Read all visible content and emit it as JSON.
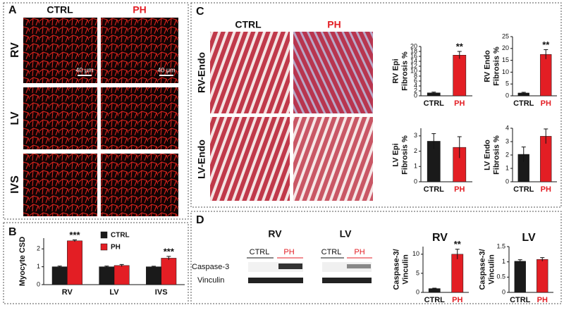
{
  "panels": {
    "A": {
      "letter": "A",
      "columns": [
        "CTRL",
        "PH"
      ],
      "rows": [
        "RV",
        "LV",
        "IVS"
      ],
      "scale_bar": "40 μm"
    },
    "B": {
      "letter": "B"
    },
    "C": {
      "letter": "C",
      "columns": [
        "CTRL",
        "PH"
      ],
      "rows": [
        "RV-Endo",
        "LV-Endo"
      ]
    },
    "D": {
      "letter": "D",
      "blots": [
        {
          "title": "RV",
          "lanes": [
            "CTRL",
            "PH"
          ]
        },
        {
          "title": "LV",
          "lanes": [
            "CTRL",
            "PH"
          ]
        }
      ],
      "bands": [
        "Caspase-3",
        "Vinculin"
      ]
    }
  },
  "chart_data": [
    {
      "type": "bar",
      "ylabel": [
        "Myocyte CSD"
      ],
      "categories": [
        "RV",
        "LV",
        "IVS"
      ],
      "series": [
        {
          "name": "CTRL",
          "color": "#1a1a1a",
          "values": [
            1,
            1,
            1
          ],
          "errors": [
            0.04,
            0.04,
            0.03
          ]
        },
        {
          "name": "PH",
          "color": "#e31e24",
          "values": [
            2.45,
            1.07,
            1.48
          ],
          "errors": [
            0.05,
            0.06,
            0.1
          ]
        }
      ],
      "annotations": [
        "***",
        null,
        "***"
      ],
      "ylim": [
        0,
        2.6
      ],
      "yticks": [
        0,
        1,
        2
      ]
    },
    {
      "type": "bar",
      "ylabel": [
        "RV Epi",
        "Fibrosis %"
      ],
      "categories": [
        "CTRL",
        "PH"
      ],
      "values": [
        1.2,
        16.5
      ],
      "errors": [
        0.3,
        1.5
      ],
      "colors": [
        "#1a1a1a",
        "#e31e24"
      ],
      "annotations": [
        null,
        "**"
      ],
      "ylim": [
        0,
        20
      ],
      "yticks": [
        0,
        2,
        4,
        6,
        8,
        10,
        12,
        14,
        16,
        18,
        20
      ]
    },
    {
      "type": "bar",
      "ylabel": [
        "RV Endo",
        "Fibrosis %"
      ],
      "categories": [
        "CTRL",
        "PH"
      ],
      "values": [
        1.2,
        17.5
      ],
      "errors": [
        0.3,
        2
      ],
      "colors": [
        "#1a1a1a",
        "#e31e24"
      ],
      "annotations": [
        null,
        "**"
      ],
      "ylim": [
        0,
        25
      ],
      "yticks": [
        0,
        5,
        10,
        15,
        20,
        25
      ]
    },
    {
      "type": "bar",
      "ylabel": [
        "LV Epi",
        "Fibrosis %"
      ],
      "categories": [
        "CTRL",
        "PH"
      ],
      "values": [
        2.65,
        2.25
      ],
      "errors": [
        0.5,
        0.7
      ],
      "colors": [
        "#1a1a1a",
        "#e31e24"
      ],
      "ylim": [
        0,
        3.5
      ],
      "yticks": [
        0,
        1,
        2,
        3
      ]
    },
    {
      "type": "bar",
      "ylabel": [
        "LV Endo",
        "Fibrosis %"
      ],
      "categories": [
        "CTRL",
        "PH"
      ],
      "values": [
        2.05,
        3.4
      ],
      "errors": [
        0.55,
        0.55
      ],
      "colors": [
        "#1a1a1a",
        "#e31e24"
      ],
      "ylim": [
        0,
        4
      ],
      "yticks": [
        0,
        1,
        2,
        3,
        4
      ]
    },
    {
      "type": "bar",
      "title": "RV",
      "ylabel": [
        "Caspase-3/",
        "Vinculin"
      ],
      "categories": [
        "CTRL",
        "PH"
      ],
      "values": [
        1,
        10
      ],
      "errors": [
        0.1,
        1.3
      ],
      "colors": [
        "#1a1a1a",
        "#e31e24"
      ],
      "annotations": [
        null,
        "**"
      ],
      "ylim": [
        0,
        12
      ],
      "yticks": [
        0,
        5,
        10
      ]
    },
    {
      "type": "bar",
      "title": "LV",
      "ylabel": [
        "Caspase-3/",
        "Vinculin"
      ],
      "categories": [
        "CTRL",
        "PH"
      ],
      "values": [
        1.02,
        1.08
      ],
      "errors": [
        0.05,
        0.06
      ],
      "colors": [
        "#1a1a1a",
        "#e31e24"
      ],
      "ylim": [
        0,
        1.5
      ],
      "yticks": [
        0,
        0.5,
        1,
        1.5
      ]
    }
  ]
}
